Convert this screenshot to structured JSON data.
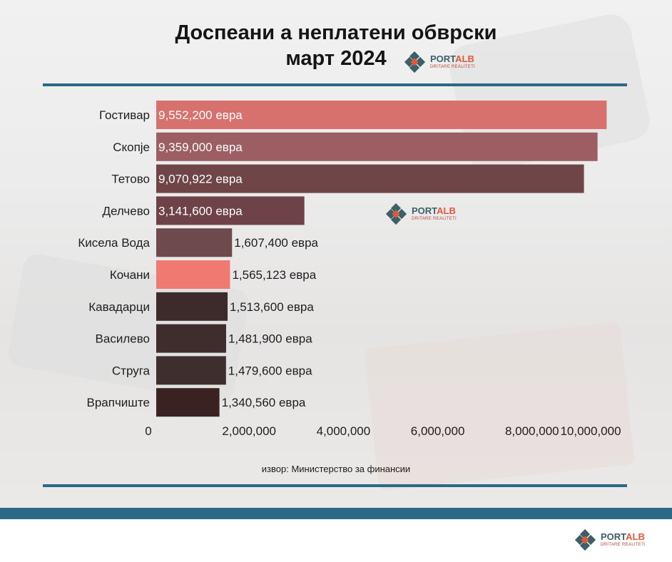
{
  "header": {
    "title_line1": "Доспеани а неплатени обврски",
    "title_line2": "март 2024"
  },
  "logo": {
    "name_part1": "PORT",
    "name_part2": "ALB",
    "tagline": "DRITARE REALITETI"
  },
  "source_text": "извор: Министерство за финансии",
  "colors": {
    "accent_rule": "#2b6a86",
    "bar_top": "#d87572",
    "bar_highlight": "#f07870",
    "bar_dark": "#3a2424"
  },
  "chart_data": {
    "type": "bar",
    "orientation": "horizontal",
    "categories": [
      "Гостивар",
      "Скопје",
      "Тетово",
      "Делчево",
      "Кисела Вода",
      "Кочани",
      "Кавадарци",
      "Василево",
      "Струга",
      "Врапчиште"
    ],
    "values": [
      9552200,
      9359000,
      9070922,
      3141600,
      1607400,
      1565123,
      1513600,
      1481900,
      1479600,
      1340560
    ],
    "data_labels": [
      "9,552,200 евра",
      "9,359,000 евра",
      "9,070,922 евра",
      "3,141,600 евра",
      "1,607,400 евра",
      "1,565,123 евра",
      "1,513,600 евра",
      "1,481,900 евра",
      "1,479,600 евра",
      "1,340,560 евра"
    ],
    "bar_colors": [
      "#d6716e",
      "#9c5e63",
      "#6f4548",
      "#6e4247",
      "#6e4a4c",
      "#f07a72",
      "#3d2a2a",
      "#3f2d2d",
      "#3e2e2e",
      "#3a2222"
    ],
    "x_ticks": [
      "0",
      "2,000,000",
      "4,000,000",
      "6,000,000",
      "8,000,000",
      "10,000,000"
    ],
    "x_tick_values": [
      0,
      2000000,
      4000000,
      6000000,
      8000000,
      10000000
    ],
    "xlim": [
      0,
      10000000
    ],
    "title": "Доспеани а неплатени обврски март 2024",
    "xlabel": "",
    "ylabel": "",
    "grid": false
  }
}
